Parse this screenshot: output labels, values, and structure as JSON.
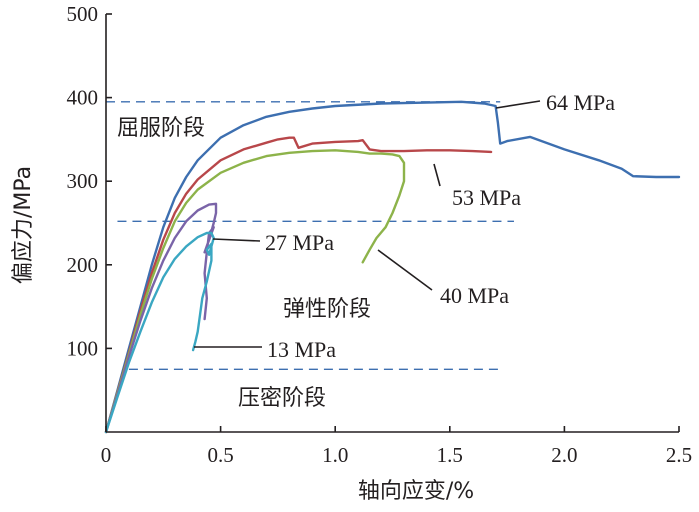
{
  "chart_data": {
    "type": "line",
    "xlabel": "轴向应变/%",
    "ylabel": "偏应力/MPa",
    "xlim": [
      0,
      2.5
    ],
    "ylim": [
      0,
      500
    ],
    "xticks": [
      0,
      0.5,
      1.0,
      1.5,
      2.0,
      2.5
    ],
    "xtick_labels": [
      "0",
      "0.5",
      "1.0",
      "1.5",
      "2.0",
      "2.5"
    ],
    "yticks": [
      100,
      200,
      300,
      400,
      500
    ],
    "ytick_labels": [
      "100",
      "200",
      "300",
      "400",
      "500"
    ],
    "grid": false,
    "colors": {
      "c64": "#3d6fb0",
      "c53": "#b8474a",
      "c40": "#8db34a",
      "c27": "#7a64a8",
      "c13": "#3aa7c2",
      "ref": "#3d6fb0",
      "axis": "#231f20"
    },
    "series": [
      {
        "name": "64 MPa",
        "color": "#3d6fb0",
        "x": [
          0,
          0.05,
          0.1,
          0.15,
          0.2,
          0.25,
          0.3,
          0.35,
          0.4,
          0.5,
          0.6,
          0.7,
          0.8,
          0.9,
          1.0,
          1.2,
          1.4,
          1.55,
          1.65,
          1.7,
          1.71,
          1.72,
          1.75,
          1.85,
          2.0,
          2.15,
          2.25,
          2.3,
          2.4,
          2.5
        ],
        "y": [
          0,
          50,
          100,
          150,
          200,
          245,
          280,
          305,
          325,
          352,
          367,
          377,
          383,
          387,
          390,
          393,
          394,
          395,
          393,
          390,
          370,
          345,
          348,
          353,
          338,
          325,
          315,
          306,
          305,
          305
        ]
      },
      {
        "name": "53 MPa",
        "color": "#b8474a",
        "x": [
          0,
          0.05,
          0.1,
          0.15,
          0.2,
          0.25,
          0.3,
          0.35,
          0.4,
          0.5,
          0.6,
          0.7,
          0.75,
          0.8,
          0.82,
          0.84,
          0.9,
          1.0,
          1.1,
          1.12,
          1.15,
          1.2,
          1.3,
          1.4,
          1.5,
          1.6,
          1.68
        ],
        "y": [
          0,
          48,
          95,
          145,
          190,
          230,
          262,
          285,
          302,
          325,
          338,
          346,
          350,
          352,
          352,
          340,
          345,
          347,
          348,
          349,
          338,
          336,
          336,
          337,
          337,
          336,
          335
        ]
      },
      {
        "name": "40 MPa",
        "color": "#8db34a",
        "x": [
          0,
          0.05,
          0.1,
          0.15,
          0.2,
          0.25,
          0.3,
          0.35,
          0.4,
          0.5,
          0.6,
          0.7,
          0.8,
          0.9,
          1.0,
          1.1,
          1.15,
          1.2,
          1.25,
          1.28,
          1.3,
          1.3,
          1.28,
          1.25,
          1.22,
          1.18,
          1.15,
          1.12
        ],
        "y": [
          0,
          47,
          93,
          140,
          183,
          220,
          252,
          274,
          290,
          310,
          322,
          330,
          334,
          336,
          337,
          335,
          333,
          333,
          332,
          330,
          322,
          300,
          283,
          262,
          245,
          232,
          218,
          203
        ]
      },
      {
        "name": "27 MPa",
        "color": "#7a64a8",
        "x": [
          0,
          0.05,
          0.1,
          0.15,
          0.2,
          0.25,
          0.3,
          0.35,
          0.4,
          0.45,
          0.48,
          0.48,
          0.47,
          0.46,
          0.45,
          0.43,
          0.47,
          0.45,
          0.44,
          0.43,
          0.44,
          0.43
        ],
        "y": [
          0,
          45,
          90,
          133,
          172,
          205,
          232,
          252,
          265,
          272,
          273,
          262,
          250,
          240,
          230,
          215,
          245,
          238,
          215,
          190,
          160,
          135
        ]
      },
      {
        "name": "13 MPa",
        "color": "#3aa7c2",
        "x": [
          0,
          0.05,
          0.1,
          0.15,
          0.2,
          0.25,
          0.3,
          0.35,
          0.4,
          0.44,
          0.46,
          0.47,
          0.46,
          0.45,
          0.44,
          0.46,
          0.46,
          0.44,
          0.42,
          0.41,
          0.4,
          0.39,
          0.38
        ],
        "y": [
          0,
          42,
          83,
          120,
          155,
          185,
          207,
          222,
          233,
          238,
          238,
          232,
          222,
          212,
          218,
          225,
          205,
          180,
          160,
          140,
          120,
          108,
          98
        ]
      }
    ],
    "reference_lines": [
      {
        "y": 395,
        "x_start": 0,
        "x_end": 1.72
      },
      {
        "y": 252,
        "x_start": 0.05,
        "x_end": 1.78
      },
      {
        "y": 75,
        "x_start": 0.1,
        "x_end": 1.73
      }
    ],
    "annotations": [
      {
        "text": "64 MPa",
        "series": "64 MPa"
      },
      {
        "text": "53 MPa",
        "series": "53 MPa"
      },
      {
        "text": "40 MPa",
        "series": "40 MPa"
      },
      {
        "text": "27 MPa",
        "series": "27 MPa"
      },
      {
        "text": "13 MPa",
        "series": "13 MPa"
      }
    ],
    "zone_labels": [
      "屈服阶段",
      "弹性阶段",
      "压密阶段"
    ]
  }
}
